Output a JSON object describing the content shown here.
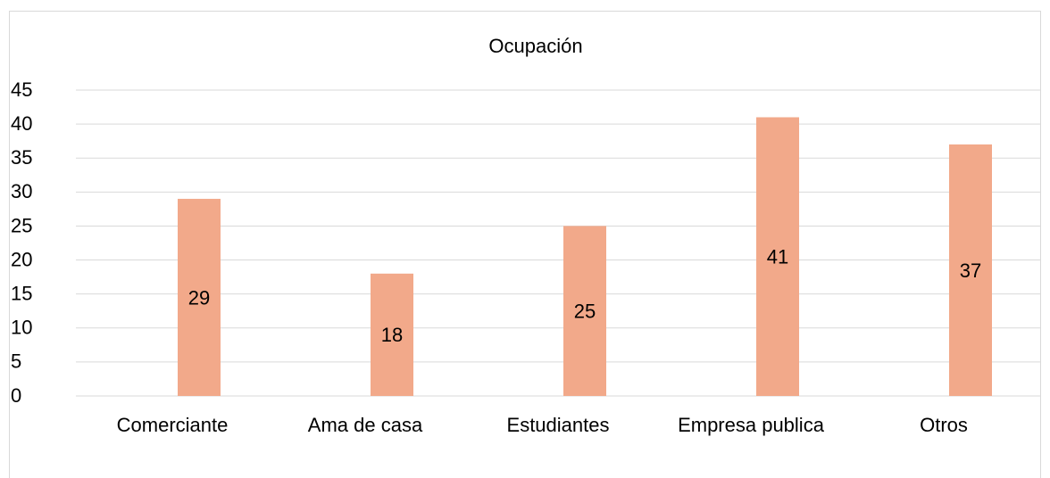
{
  "chart_data": {
    "type": "bar",
    "title": "Ocupación",
    "categories": [
      "Comerciante",
      "Ama de casa",
      "Estudiantes",
      "Empresa publica",
      "Otros"
    ],
    "values": [
      29,
      18,
      25,
      41,
      37
    ],
    "color": "#f2a98a",
    "ylim": [
      0,
      45
    ],
    "yticks": [
      0,
      5,
      10,
      15,
      20,
      25,
      30,
      35,
      40,
      45
    ],
    "grid": true
  }
}
